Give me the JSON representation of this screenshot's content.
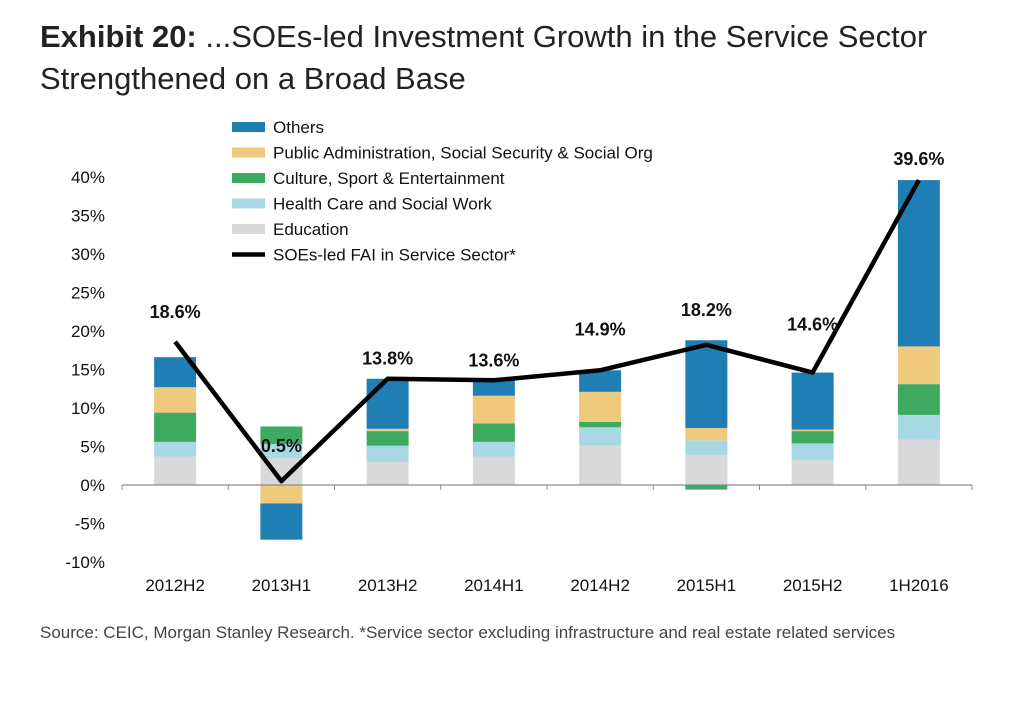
{
  "header": {
    "exhibit": "Exhibit 20:",
    "title": "...SOEs-led Investment Growth in the Service Sector Strengthened on a Broad Base"
  },
  "source": "Source: CEIC, Morgan Stanley Research. *Service sector excluding infrastructure and real estate related services",
  "chart_data": {
    "type": "bar",
    "stacked": true,
    "title": "...SOEs-led Investment Growth in the Service Sector Strengthened on a Broad Base",
    "categories": [
      "2012H2",
      "2013H1",
      "2013H2",
      "2014H1",
      "2014H2",
      "2015H1",
      "2015H2",
      "1H2016"
    ],
    "ylim": [
      -10,
      40
    ],
    "yticks": [
      -10,
      -5,
      0,
      5,
      10,
      15,
      20,
      25,
      30,
      35,
      40
    ],
    "ytick_labels": [
      "-10%",
      "-5%",
      "0%",
      "5%",
      "10%",
      "15%",
      "20%",
      "25%",
      "30%",
      "35%",
      "40%"
    ],
    "grid": false,
    "legend_position": "top-left",
    "series": [
      {
        "name": "Education",
        "color": "#d9d9d9",
        "values": [
          3.7,
          3.5,
          3.0,
          3.7,
          5.1,
          3.9,
          3.2,
          5.9
        ]
      },
      {
        "name": "Health Care and Social Work",
        "color": "#a8d8e4",
        "values": [
          1.9,
          1.8,
          2.1,
          1.9,
          2.4,
          1.9,
          2.2,
          3.2
        ]
      },
      {
        "name": "Culture, Sport & Entertainment",
        "color": "#3daa60",
        "values": [
          3.8,
          2.3,
          1.9,
          2.4,
          0.7,
          -0.6,
          1.6,
          4.0
        ]
      },
      {
        "name": "Public Administration, Social Security & Social Org",
        "color": "#eec97e",
        "values": [
          3.3,
          -2.4,
          0.3,
          3.6,
          3.9,
          1.6,
          0.2,
          4.9
        ]
      },
      {
        "name": "Others",
        "color": "#1f7fb5",
        "values": [
          3.9,
          -4.7,
          6.5,
          2.0,
          2.8,
          11.4,
          7.4,
          21.6
        ]
      }
    ],
    "line": {
      "name": "SOEs-led FAI in Service Sector*",
      "color": "#000000",
      "values": [
        18.6,
        0.5,
        13.8,
        13.6,
        14.9,
        18.2,
        14.6,
        39.6
      ],
      "labels": [
        "18.6%",
        "0.5%",
        "13.8%",
        "13.6%",
        "14.9%",
        "18.2%",
        "14.6%",
        "39.6%"
      ]
    },
    "legend_order": [
      "Others",
      "Public Administration, Social Security & Social Org",
      "Culture, Sport & Entertainment",
      "Health Care and Social Work",
      "Education",
      "SOEs-led FAI in Service Sector*"
    ]
  }
}
